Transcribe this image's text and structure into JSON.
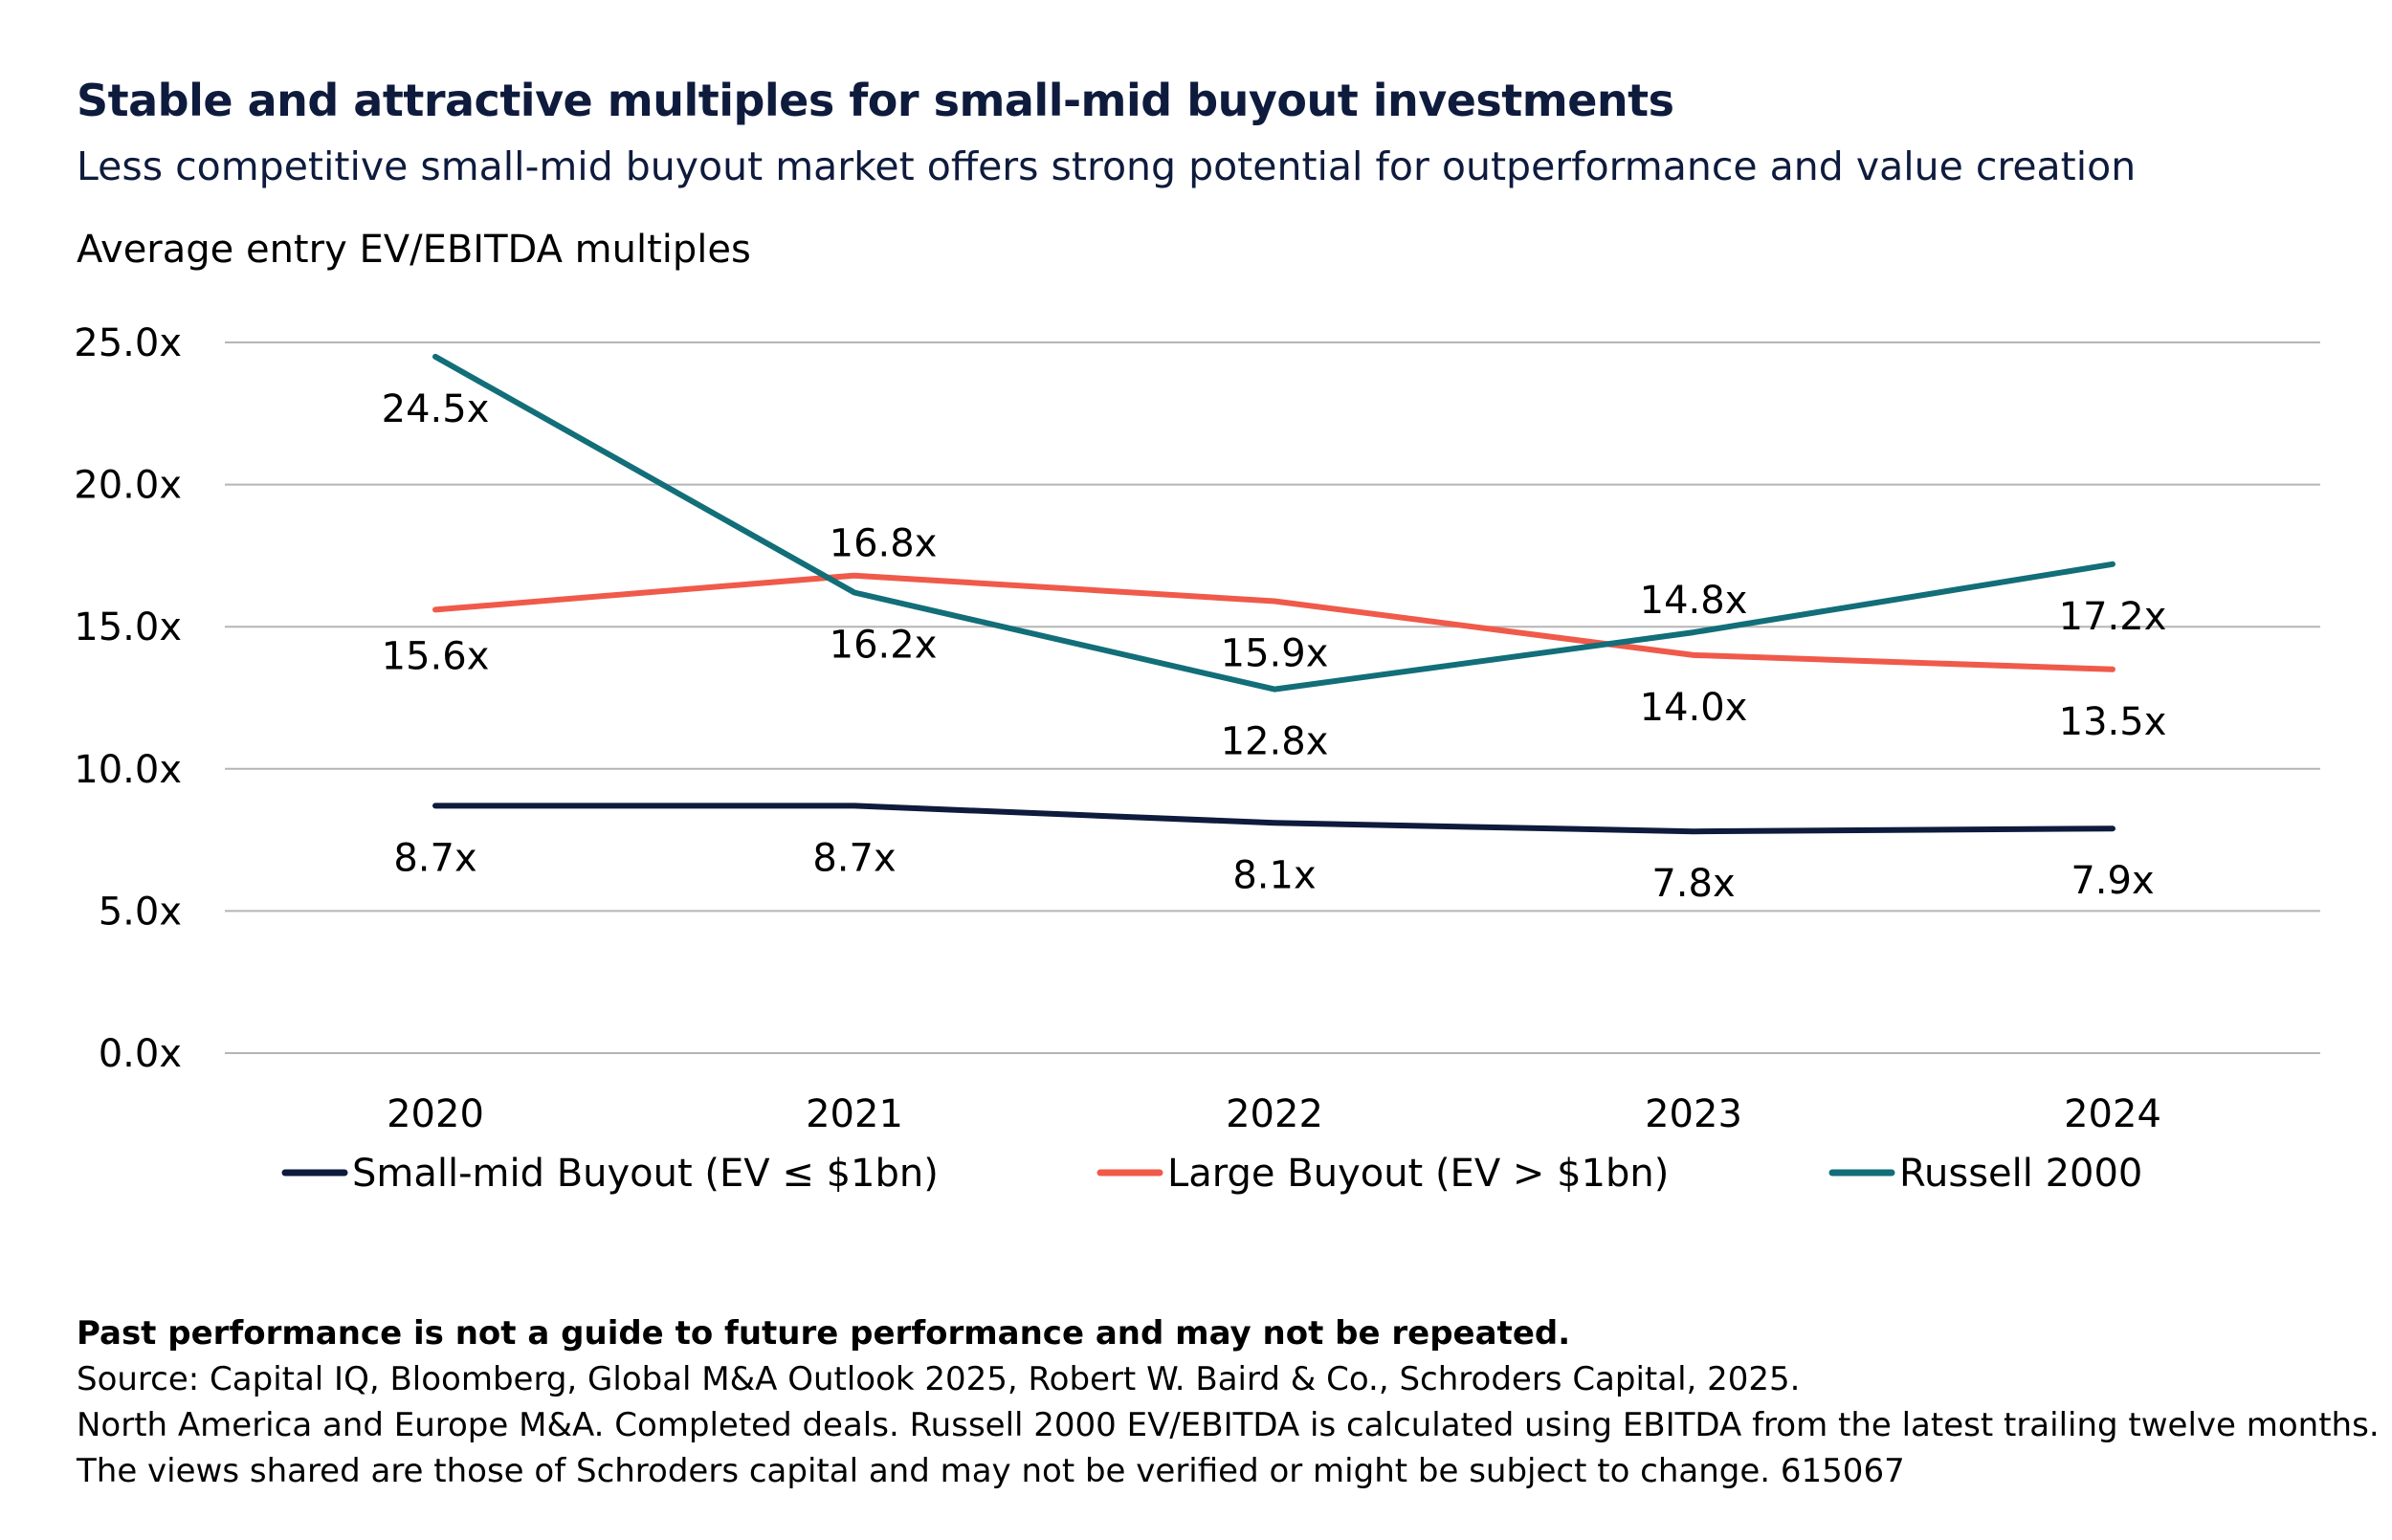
{
  "header": {
    "title": "Stable and attractive multiples for small-mid buyout investments",
    "subtitle": "Less competitive small-mid buyout market offers strong potential for outperformance and value creation"
  },
  "chart_data": {
    "type": "line",
    "ylabel": "Average entry EV/EBITDA multiples",
    "categories": [
      "2020",
      "2021",
      "2022",
      "2023",
      "2024"
    ],
    "ylim": [
      0,
      25
    ],
    "yticks": [
      "0.0x",
      "5.0x",
      "10.0x",
      "15.0x",
      "20.0x",
      "25.0x"
    ],
    "grid": true,
    "legend_position": "bottom",
    "series": [
      {
        "name": "Small-mid Buyout (EV ≤ $1bn)",
        "color": "#0e1b3d",
        "values": [
          8.7,
          8.7,
          8.1,
          7.8,
          7.9
        ],
        "labels": [
          "8.7x",
          "8.7x",
          "8.1x",
          "7.8x",
          "7.9x"
        ]
      },
      {
        "name": "Large Buyout (EV > $1bn)",
        "color": "#f05a4a",
        "values": [
          15.6,
          16.8,
          15.9,
          14.0,
          13.5
        ],
        "labels": [
          "15.6x",
          "16.8x",
          "15.9x",
          "14.0x",
          "13.5x"
        ]
      },
      {
        "name": "Russell 2000",
        "color": "#126e78",
        "values": [
          24.5,
          16.2,
          12.8,
          14.8,
          17.2
        ],
        "labels": [
          "24.5x",
          "16.2x",
          "12.8x",
          "14.8x",
          "17.2x"
        ]
      }
    ]
  },
  "footnotes": {
    "disclaimer": "Past performance is not a guide to future performance and may not be repeated.",
    "source": "Source: Capital IQ, Bloomberg, Global M&A Outlook 2025, Robert W. Baird & Co., Schroders Capital, 2025.",
    "note": "North America and Europe M&A. Completed deals. Russell 2000 EV/EBITDA is calculated using EBITDA from the latest trailing twelve months.",
    "views": "The views shared are those of Schroders capital and may not be verified or might be subject to change. 615067"
  }
}
